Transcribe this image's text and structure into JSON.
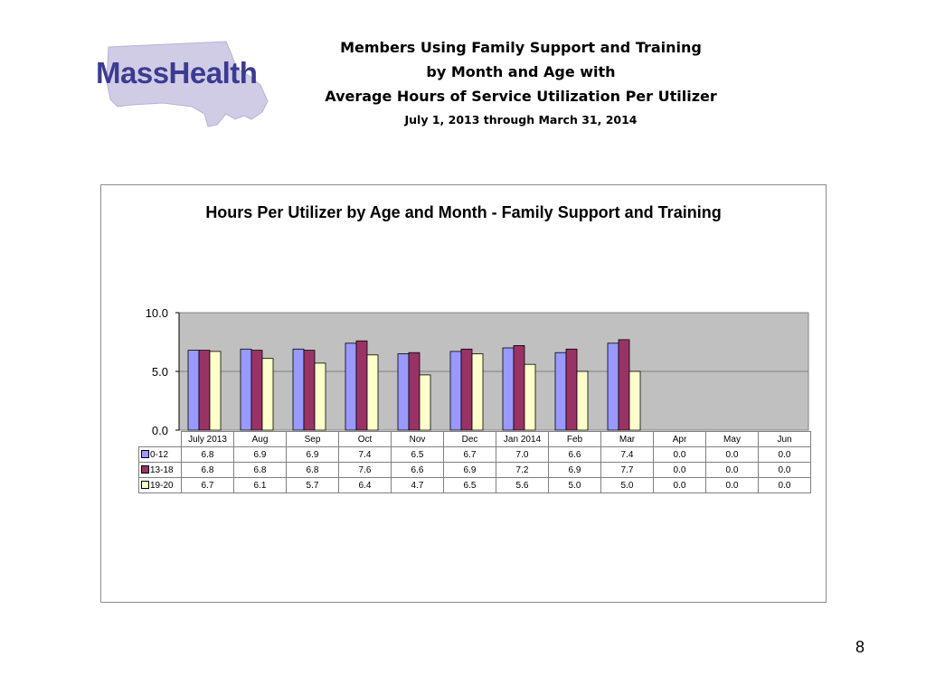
{
  "header": {
    "logo_text": "MassHealth",
    "title_line1": "Members Using Family Support and Training",
    "title_line2": "by Month and Age with",
    "title_line3": "Average Hours of Service Utilization Per Utilizer",
    "date_range": "July 1, 2013 through March 31, 2014"
  },
  "page_number": "8",
  "colors": {
    "series_0_12": "#9999ff",
    "series_13_18": "#993366",
    "series_19_20": "#ffffcc",
    "plot_background": "#c0c0c0",
    "logo_text": "#3b3b91",
    "logo_map": "#d0cce6"
  },
  "chart_data": {
    "type": "bar",
    "title": "Hours Per Utilizer by Age and Month - Family Support and Training",
    "categories": [
      "July 2013",
      "Aug",
      "Sep",
      "Oct",
      "Nov",
      "Dec",
      "Jan 2014",
      "Feb",
      "Mar",
      "Apr",
      "May",
      "Jun"
    ],
    "series": [
      {
        "name": "0-12",
        "values": [
          6.8,
          6.9,
          6.9,
          7.4,
          6.5,
          6.7,
          7.0,
          6.6,
          7.4,
          0.0,
          0.0,
          0.0
        ]
      },
      {
        "name": "13-18",
        "values": [
          6.8,
          6.8,
          6.8,
          7.6,
          6.6,
          6.9,
          7.2,
          6.9,
          7.7,
          0.0,
          0.0,
          0.0
        ]
      },
      {
        "name": "19-20",
        "values": [
          6.7,
          6.1,
          5.7,
          6.4,
          4.7,
          6.5,
          5.6,
          5.0,
          5.0,
          0.0,
          0.0,
          0.0
        ]
      }
    ],
    "y_ticks": [
      "0.0",
      "5.0",
      "10.0"
    ],
    "ylim": [
      0,
      10
    ],
    "grid": true,
    "legend": "data-table"
  }
}
